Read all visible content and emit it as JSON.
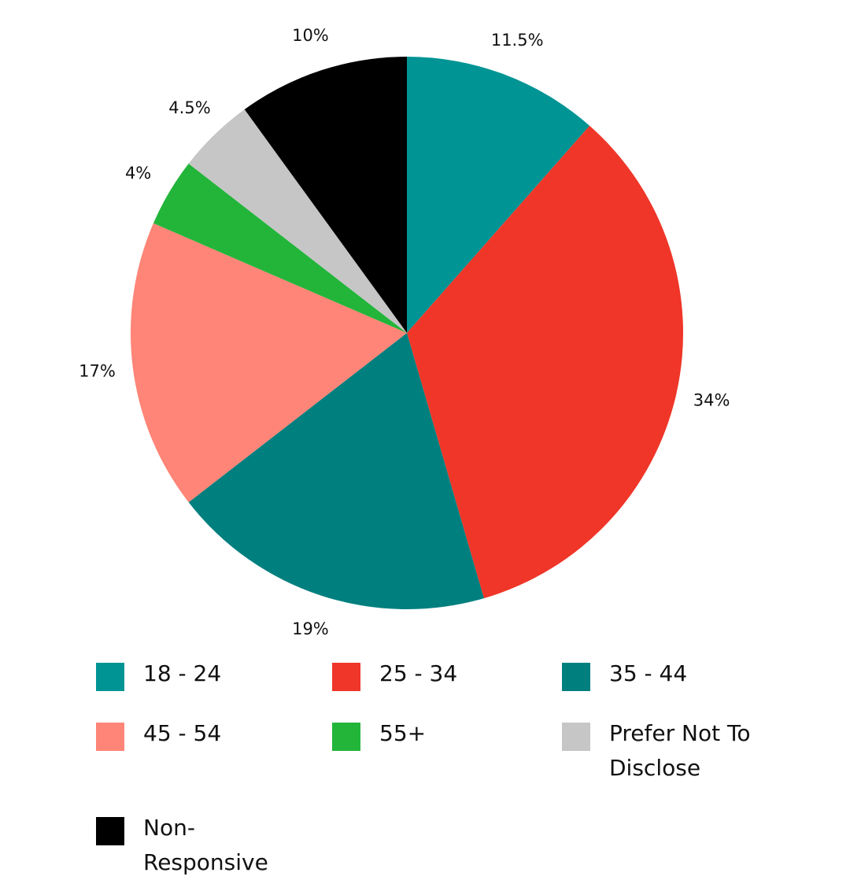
{
  "chart_data": {
    "type": "pie",
    "categories": [
      "18 - 24",
      "25 - 34",
      "35 - 44",
      "45 - 54",
      "55+",
      "Prefer Not To Disclose",
      "Non-Responsive"
    ],
    "values": [
      11.5,
      34,
      19,
      17,
      4,
      4.5,
      10
    ],
    "value_labels": [
      "11.5%",
      "34%",
      "19%",
      "17%",
      "4%",
      "4.5%",
      "10%"
    ],
    "colors": [
      "#009494",
      "#ef3628",
      "#007f7f",
      "#fe8577",
      "#22b53a",
      "#c6c6c6",
      "#000000"
    ]
  }
}
